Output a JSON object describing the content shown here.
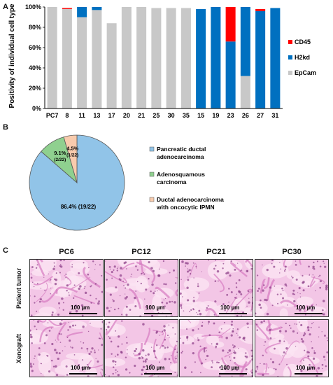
{
  "panels": {
    "a": "A",
    "b": "B",
    "c": "C"
  },
  "chart_data": [
    {
      "type": "bar",
      "stacked": true,
      "ylabel": "Positivity of individual cell type",
      "ylim": [
        0,
        100
      ],
      "yticks": [
        "0%",
        "20%",
        "40%",
        "60%",
        "80%",
        "100%"
      ],
      "categories": [
        "PC7",
        "8",
        "11",
        "13",
        "17",
        "20",
        "21",
        "25",
        "30",
        "35",
        "15",
        "19",
        "23",
        "26",
        "27",
        "31"
      ],
      "series": [
        {
          "name": "EpCam",
          "color": "#c8c8c8",
          "values": [
            100,
            98,
            90,
            97,
            84,
            100,
            100,
            99,
            99,
            99,
            0,
            0,
            0,
            32,
            0,
            0
          ]
        },
        {
          "name": "H2kd",
          "color": "#0070c0",
          "values": [
            0,
            0,
            10,
            3,
            0,
            0,
            0,
            0,
            0,
            0,
            98,
            100,
            66,
            68,
            96,
            99
          ]
        },
        {
          "name": "CD45",
          "color": "#ff0000",
          "values": [
            0,
            1,
            0,
            0,
            0,
            0,
            0,
            0,
            0,
            0,
            0,
            0,
            34,
            0,
            2,
            0
          ]
        }
      ],
      "legend": "right"
    },
    {
      "type": "pie",
      "slices": [
        {
          "label": "Pancreatic ductal adenocarcinoma",
          "value": 86.4,
          "text": "86.4% (19/22)",
          "color": "#91c4e8"
        },
        {
          "label": "Adenosquamous carcinoma",
          "value": 9.1,
          "text": "9.1%",
          "sub": "(2/22)",
          "color": "#8fd08f"
        },
        {
          "label": "Ductal adenocarcinoma with oncocytic IPMN",
          "value": 4.5,
          "text": "4.5%",
          "sub": "(1/22)",
          "color": "#f8cbad"
        }
      ],
      "legend_lines": [
        [
          "Pancreatic ductal",
          "adenocarcinoma"
        ],
        [
          "Adenosquamous",
          "carcinoma"
        ],
        [
          "Ductal adenocarcinoma",
          "with oncocytic IPMN"
        ]
      ]
    }
  ],
  "histology": {
    "columns": [
      "PC6",
      "PC12",
      "PC21",
      "PC30"
    ],
    "rows": [
      "Patient tumor",
      "Xenograft"
    ],
    "scale_label": "100 µm"
  }
}
